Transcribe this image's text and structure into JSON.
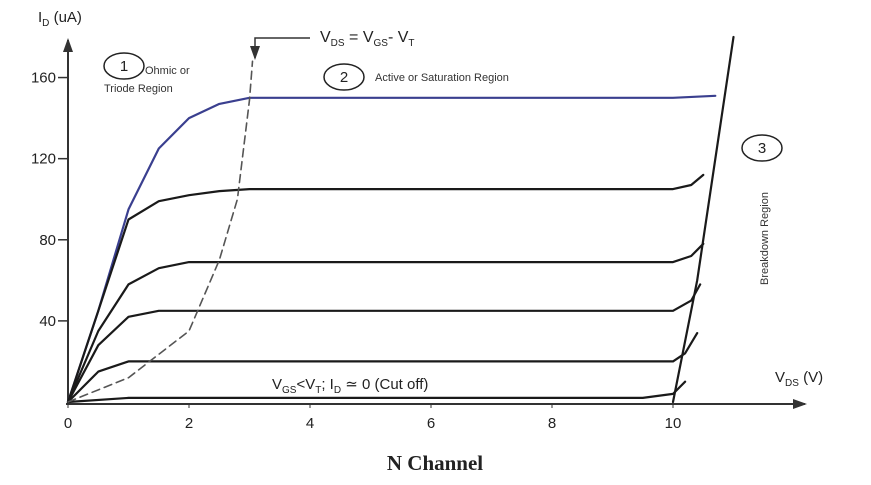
{
  "chart_data": {
    "type": "line",
    "caption": "N Channel",
    "y_label": [
      {
        "t": "I"
      },
      {
        "sub": "D"
      },
      {
        "t": " (uA)"
      }
    ],
    "x_label": [
      {
        "t": "V"
      },
      {
        "sub": "DS"
      },
      {
        "t": " (V)"
      }
    ],
    "boundary_label": [
      {
        "t": "V"
      },
      {
        "sub": "DS"
      },
      {
        "t": " = V"
      },
      {
        "sub": "GS"
      },
      {
        "t": "- V"
      },
      {
        "sub": "T"
      }
    ],
    "cutoff_label": [
      {
        "t": "V"
      },
      {
        "sub": "GS"
      },
      {
        "t": "<V"
      },
      {
        "sub": "T"
      },
      {
        "t": "; I"
      },
      {
        "sub": "D"
      },
      {
        "t": " ≃ 0 (Cut off)"
      }
    ],
    "regions": [
      {
        "number": "1",
        "lines": [
          "Ohmic or",
          "Triode Region"
        ]
      },
      {
        "number": "2",
        "lines": [
          "Active or Saturation Region"
        ]
      },
      {
        "number": "3",
        "lines": [
          "Breakdown Region"
        ]
      }
    ],
    "xlim": [
      0,
      12
    ],
    "ylim": [
      0,
      180
    ],
    "xticks": [
      0,
      2,
      4,
      6,
      8,
      10
    ],
    "yticks": [
      40,
      80,
      120,
      160
    ],
    "series": [
      {
        "color": "#3a3f8f",
        "x": [
          0,
          0.5,
          1,
          1.5,
          2,
          2.5,
          3,
          5,
          8,
          10,
          10.7
        ],
        "values": [
          0,
          45,
          95,
          125,
          140,
          147,
          150,
          150,
          150,
          150,
          151
        ]
      },
      {
        "color": "#1a1a1a",
        "x": [
          0,
          0.5,
          1,
          1.5,
          2,
          2.5,
          3,
          8,
          10,
          10.3,
          10.5
        ],
        "values": [
          0,
          45,
          90,
          99,
          102,
          104,
          105,
          105,
          105,
          107,
          112
        ]
      },
      {
        "color": "#1a1a1a",
        "x": [
          0,
          0.5,
          1,
          1.5,
          2,
          10,
          10.3,
          10.5
        ],
        "values": [
          0,
          35,
          58,
          66,
          69,
          69,
          72,
          78
        ]
      },
      {
        "color": "#1a1a1a",
        "x": [
          0,
          0.5,
          1,
          1.5,
          10,
          10.3,
          10.45
        ],
        "values": [
          0,
          28,
          42,
          45,
          45,
          50,
          58
        ]
      },
      {
        "color": "#1a1a1a",
        "x": [
          0,
          0.5,
          1,
          10,
          10.2,
          10.4
        ],
        "values": [
          0,
          15,
          20,
          20,
          24,
          34
        ]
      },
      {
        "color": "#1a1a1a",
        "x": [
          0,
          1,
          9.5,
          10,
          10.2
        ],
        "values": [
          0,
          2,
          2,
          4,
          10
        ]
      },
      {
        "color": "#1a1a1a",
        "x": [
          10,
          10.4,
          10.8,
          11.0
        ],
        "values": [
          0,
          60,
          140,
          180
        ]
      },
      {
        "color": "#555555",
        "dashed": true,
        "x": [
          0,
          1,
          2,
          2.5,
          2.8,
          3,
          3.05
        ],
        "values": [
          0,
          12,
          35,
          70,
          100,
          149,
          168
        ]
      }
    ]
  }
}
